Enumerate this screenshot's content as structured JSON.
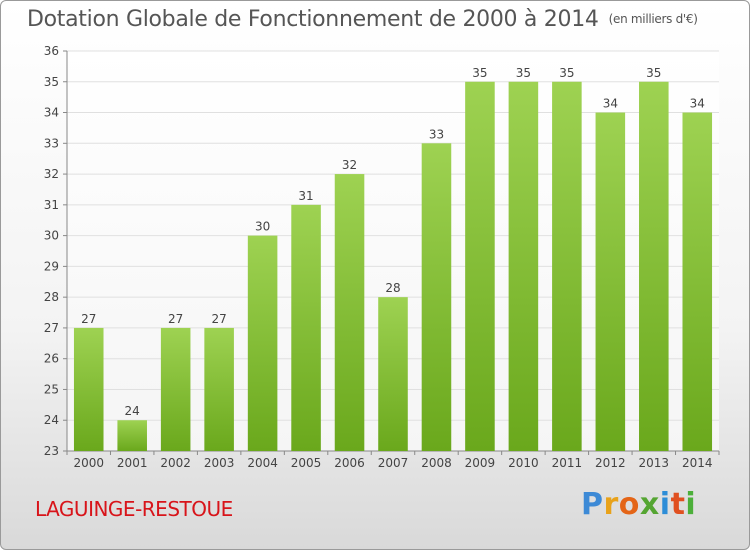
{
  "header": {
    "title": "Dotation Globale de Fonctionnement de 2000 à 2014",
    "unit": "(en milliers d'€)"
  },
  "footer": {
    "commune": "LAGUINGE-RESTOUE",
    "logo": "Proxiti"
  },
  "colors": {
    "bar_light": "#9ed252",
    "bar_dark": "#6aa81c",
    "axis": "#888888",
    "grid": "#e0e0e0",
    "label": "#444444"
  },
  "chart_data": {
    "type": "bar",
    "title": "Dotation Globale de Fonctionnement de 2000 à 2014",
    "xlabel": "",
    "ylabel": "",
    "categories": [
      "2000",
      "2001",
      "2002",
      "2003",
      "2004",
      "2005",
      "2006",
      "2007",
      "2008",
      "2009",
      "2010",
      "2011",
      "2012",
      "2013",
      "2014"
    ],
    "values": [
      27,
      24,
      27,
      27,
      30,
      31,
      32,
      28,
      33,
      35,
      35,
      35,
      34,
      35,
      34
    ],
    "ylim": [
      23,
      36
    ],
    "yticks": [
      23,
      24,
      25,
      26,
      27,
      28,
      29,
      30,
      31,
      32,
      33,
      34,
      35,
      36
    ],
    "grid": true,
    "data_labels": true
  }
}
